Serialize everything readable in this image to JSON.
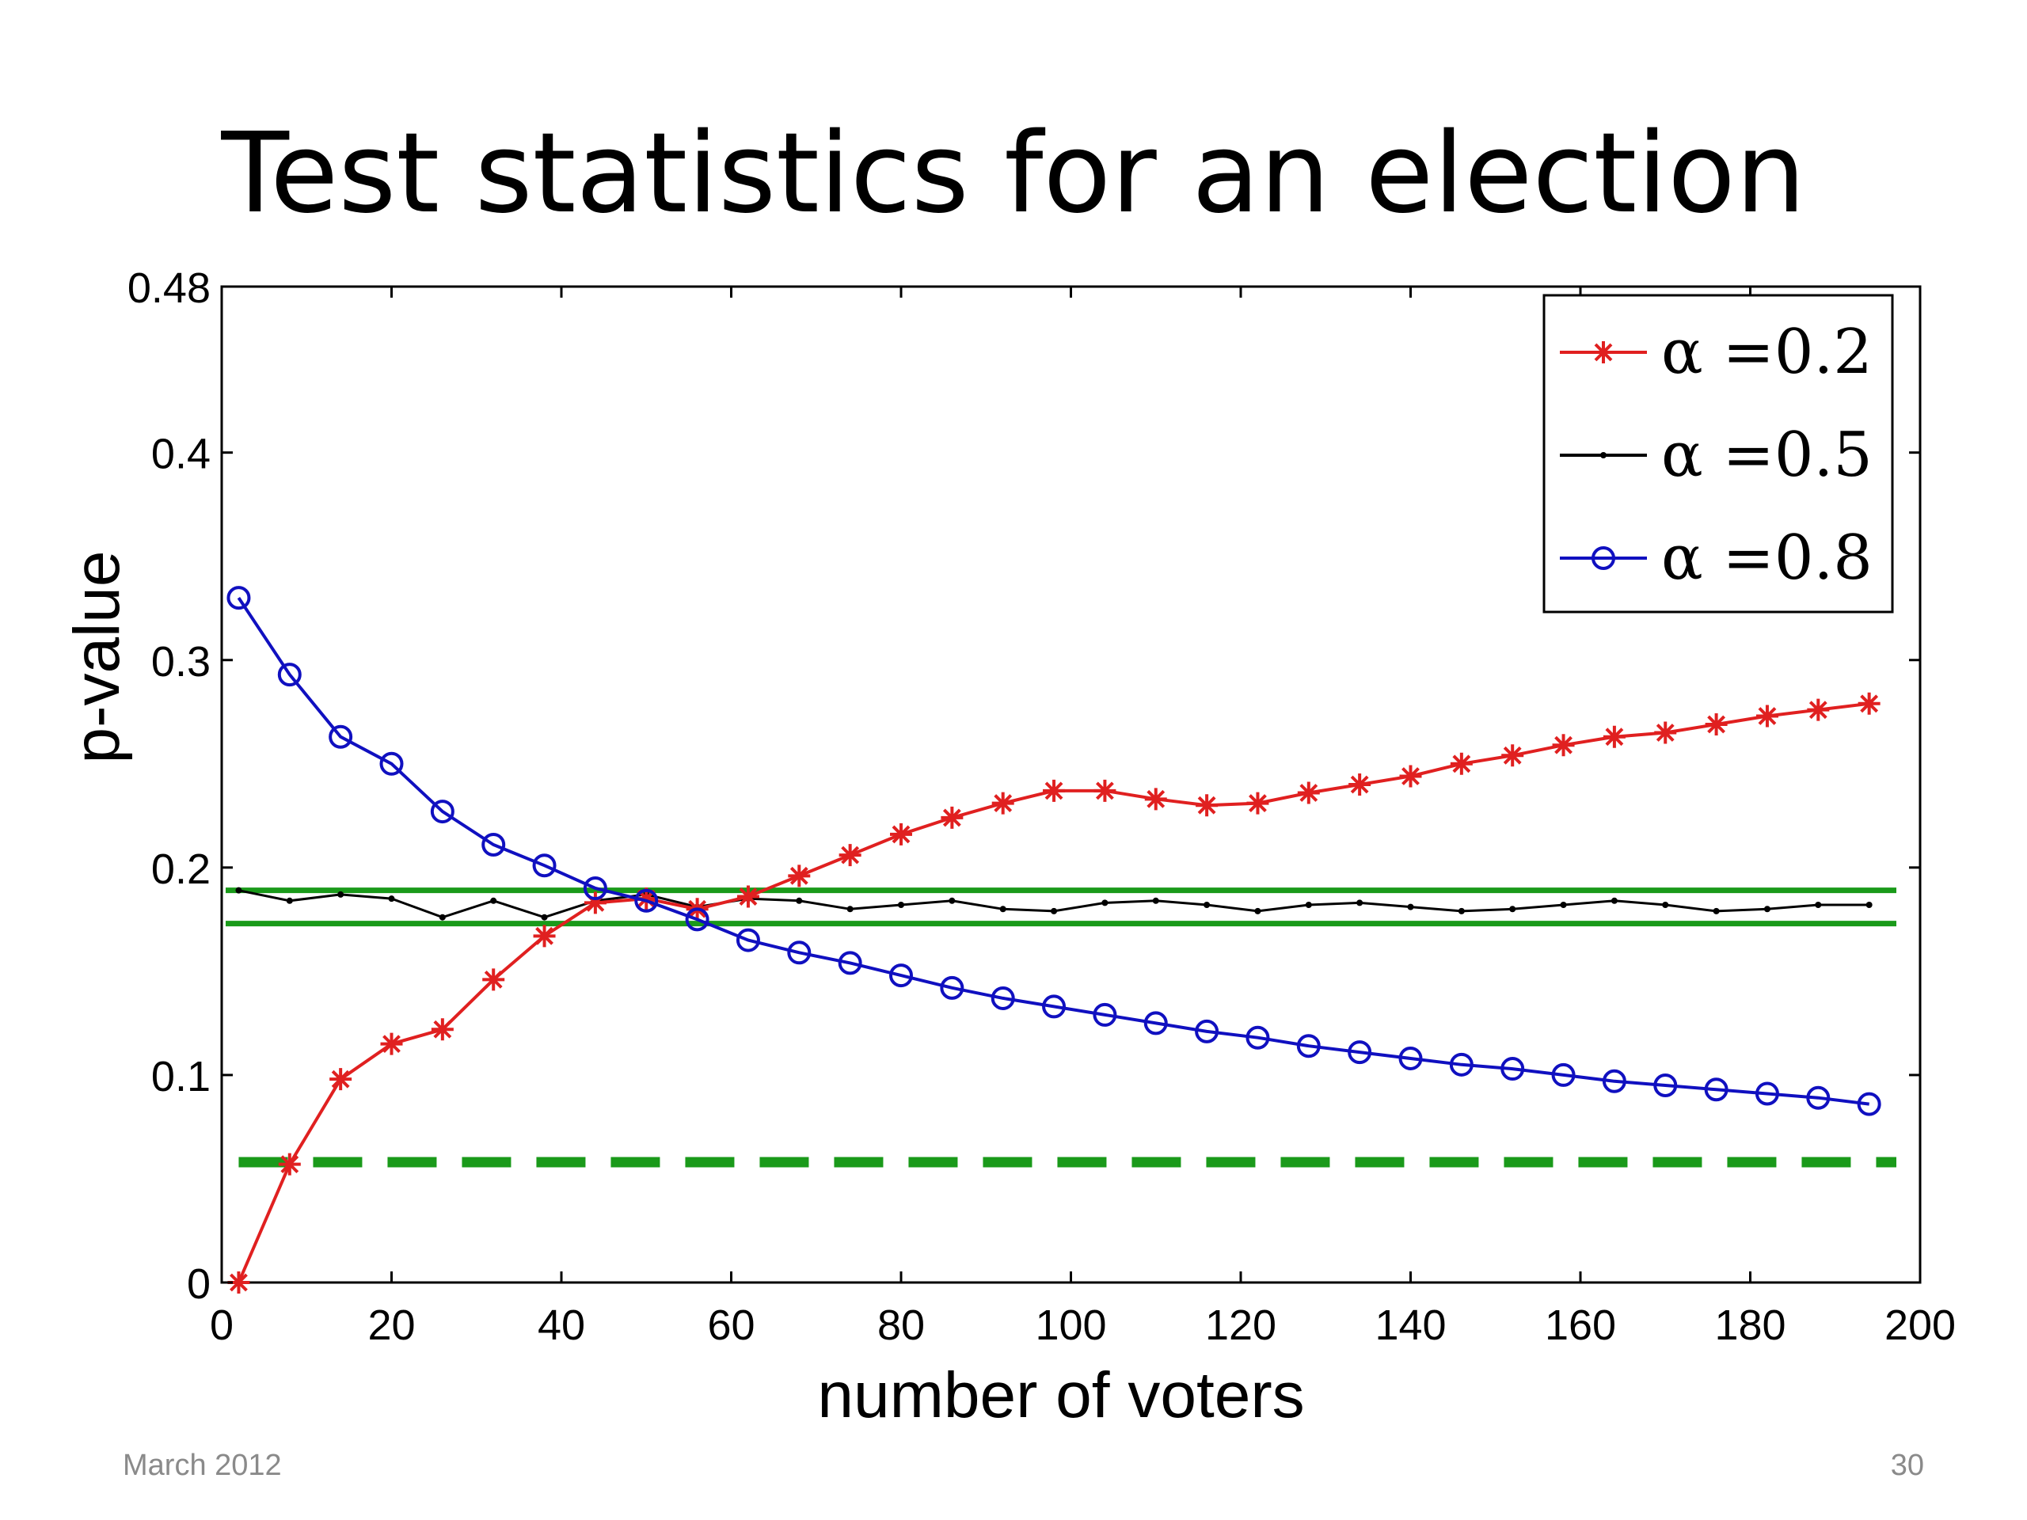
{
  "slide": {
    "title": "Test statistics for an election",
    "footer_left": "March 2012",
    "footer_right": "30"
  },
  "chart_data": {
    "type": "line",
    "title": "",
    "xlabel": "number of voters",
    "ylabel": "p-value",
    "xlim": [
      0,
      200
    ],
    "ylim": [
      0,
      0.48
    ],
    "xticks": [
      0,
      20,
      40,
      60,
      80,
      100,
      120,
      140,
      160,
      180,
      200
    ],
    "yticks": [
      0,
      0.1,
      0.2,
      0.3,
      0.4,
      0.48
    ],
    "ytick_labels": [
      "0",
      "0.1",
      "0.2",
      "0.3",
      "0.4",
      "0.48"
    ],
    "grid": false,
    "legend_position": "top-right",
    "x": [
      2,
      8,
      14,
      20,
      26,
      32,
      38,
      44,
      50,
      56,
      62,
      68,
      74,
      80,
      86,
      92,
      98,
      104,
      110,
      116,
      122,
      128,
      134,
      140,
      146,
      152,
      158,
      164,
      170,
      176,
      182,
      188,
      194
    ],
    "series": [
      {
        "name": "α =0.2",
        "color": "#e02020",
        "marker": "star",
        "values": [
          0.0,
          0.057,
          0.098,
          0.115,
          0.122,
          0.146,
          0.167,
          0.183,
          0.185,
          0.18,
          0.186,
          0.196,
          0.206,
          0.216,
          0.224,
          0.231,
          0.237,
          0.237,
          0.233,
          0.23,
          0.231,
          0.236,
          0.24,
          0.244,
          0.25,
          0.254,
          0.259,
          0.263,
          0.265,
          0.269,
          0.273,
          0.276,
          0.279
        ]
      },
      {
        "name": "α =0.5",
        "color": "#000000",
        "marker": "dot",
        "values": [
          0.189,
          0.184,
          0.187,
          0.185,
          0.176,
          0.184,
          0.176,
          0.184,
          0.187,
          0.181,
          0.185,
          0.184,
          0.18,
          0.182,
          0.184,
          0.18,
          0.179,
          0.183,
          0.184,
          0.182,
          0.179,
          0.182,
          0.183,
          0.181,
          0.179,
          0.18,
          0.182,
          0.184,
          0.182,
          0.179,
          0.18,
          0.182,
          0.182
        ]
      },
      {
        "name": "α =0.8",
        "color": "#1010c0",
        "marker": "circle",
        "values": [
          0.33,
          0.293,
          0.263,
          0.25,
          0.227,
          0.211,
          0.201,
          0.19,
          0.184,
          0.175,
          0.165,
          0.159,
          0.154,
          0.148,
          0.142,
          0.137,
          0.133,
          0.129,
          0.125,
          0.121,
          0.118,
          0.114,
          0.111,
          0.108,
          0.105,
          0.103,
          0.1,
          0.097,
          0.095,
          0.093,
          0.091,
          0.089,
          0.086
        ]
      }
    ],
    "reference_lines": [
      {
        "y": 0.189,
        "style": "solid",
        "color": "#1a9a1a"
      },
      {
        "y": 0.173,
        "style": "solid",
        "color": "#1a9a1a"
      },
      {
        "y": 0.058,
        "style": "dashed",
        "color": "#1a9a1a"
      }
    ]
  }
}
